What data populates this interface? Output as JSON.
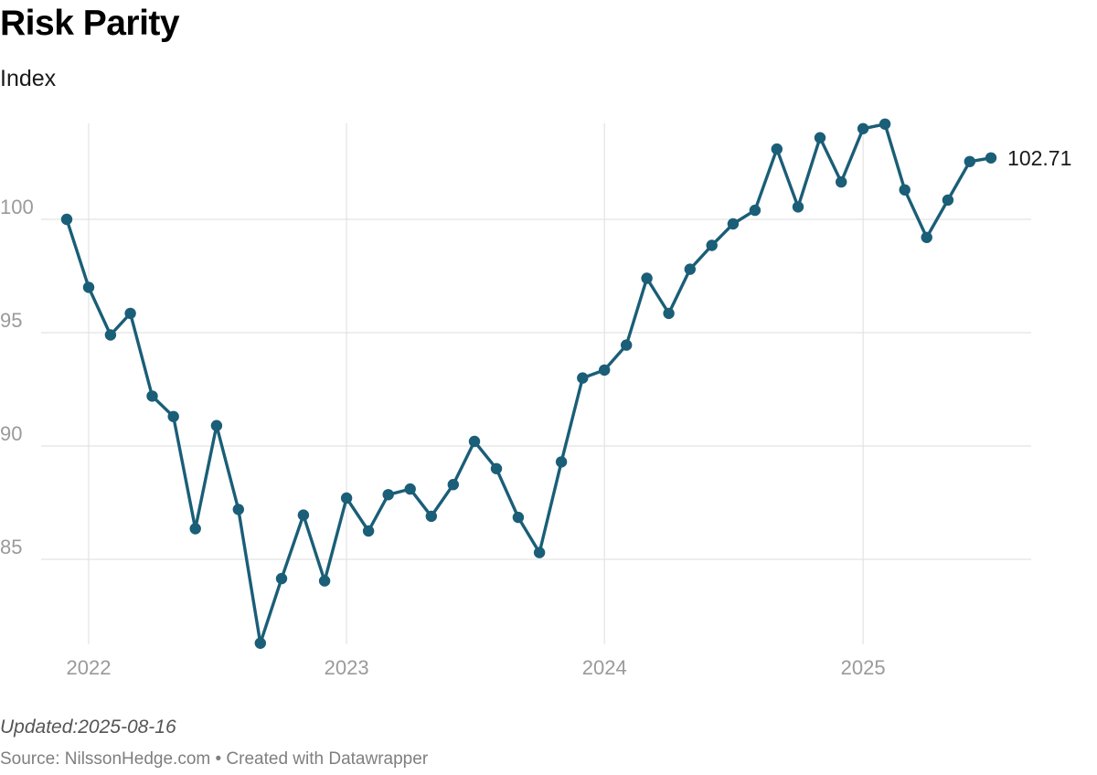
{
  "title": "Risk Parity",
  "subtitle": "Index",
  "footer": {
    "updated": "Updated:2025-08-16",
    "source": "Source: NilssonHedge.com • Created with Datawrapper"
  },
  "colors": {
    "line": "#1a5e77",
    "grid": "#e3e3e3",
    "tick_label": "#9a9a9a",
    "end_label": "#1a1a1a"
  },
  "chart_data": {
    "type": "line",
    "title": "Risk Parity",
    "subtitle": "Index",
    "xlabel": "",
    "ylabel": "",
    "x_ticks": [
      "2022",
      "2023",
      "2024",
      "2025"
    ],
    "y_ticks": [
      85,
      90,
      95,
      100
    ],
    "xlim": [
      "2021-12-01",
      "2025-08-01"
    ],
    "ylim": [
      81,
      104.2
    ],
    "grid": true,
    "legend": "none",
    "end_label": "102.71",
    "series": [
      {
        "x": [
          "2021-12-01",
          "2022-01-01",
          "2022-02-01",
          "2022-03-01",
          "2022-04-01",
          "2022-05-01",
          "2022-06-01",
          "2022-07-01",
          "2022-08-01",
          "2022-09-01",
          "2022-10-01",
          "2022-11-01",
          "2022-12-01",
          "2023-01-01",
          "2023-02-01",
          "2023-03-01",
          "2023-04-01",
          "2023-05-01",
          "2023-06-01",
          "2023-07-01",
          "2023-08-01",
          "2023-09-01",
          "2023-10-01",
          "2023-11-01",
          "2023-12-01",
          "2024-01-01",
          "2024-02-01",
          "2024-03-01",
          "2024-04-01",
          "2024-05-01",
          "2024-06-01",
          "2024-07-01",
          "2024-08-01",
          "2024-09-01",
          "2024-10-01",
          "2024-11-01",
          "2024-12-01",
          "2025-01-01",
          "2025-02-01",
          "2025-03-01",
          "2025-04-01",
          "2025-05-01",
          "2025-06-01",
          "2025-07-01"
        ],
        "values": [
          100.0,
          97.0,
          94.9,
          95.85,
          92.2,
          91.3,
          86.35,
          90.9,
          87.2,
          81.3,
          84.15,
          86.95,
          84.05,
          87.7,
          86.25,
          87.85,
          88.1,
          86.9,
          88.3,
          90.2,
          89.0,
          86.85,
          85.3,
          89.3,
          93.0,
          93.35,
          94.45,
          97.4,
          95.85,
          97.8,
          98.85,
          99.8,
          100.4,
          103.1,
          100.55,
          103.6,
          101.65,
          104.0,
          104.2,
          101.3,
          99.2,
          100.85,
          102.55,
          102.71
        ]
      }
    ]
  }
}
